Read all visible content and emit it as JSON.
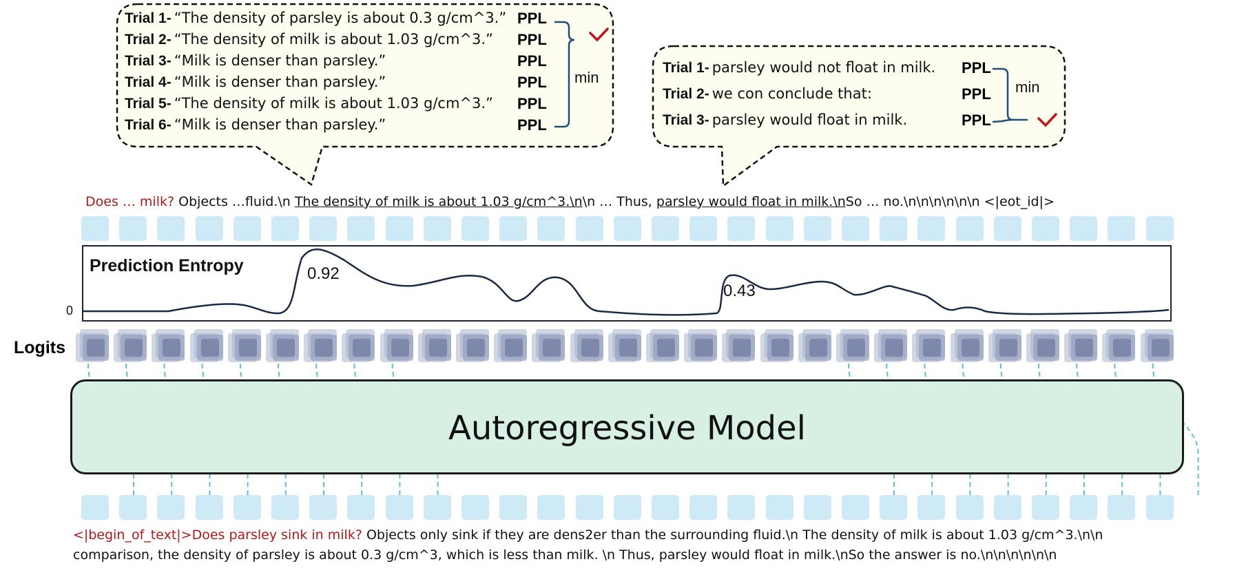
{
  "left_bubble": {
    "trials": [
      {
        "label": "Trial 1-",
        "text": "“The density of parsley is about 0.3 g/cm^3.”",
        "metric": "PPL"
      },
      {
        "label": "Trial 2-",
        "text": "“The density of milk is about 1.03 g/cm^3.”",
        "metric": "PPL"
      },
      {
        "label": "Trial 3-",
        "text": "“Milk is denser than parsley.”",
        "metric": "PPL"
      },
      {
        "label": "Trial 4-",
        "text": "“Milk is denser than parsley.”",
        "metric": "PPL"
      },
      {
        "label": "Trial 5-",
        "text": "“The density of milk is about 1.03 g/cm^3.”",
        "metric": "PPL"
      },
      {
        "label": "Trial 6-",
        "text": "“Milk is denser than parsley.”",
        "metric": "PPL"
      }
    ],
    "min_label": "min",
    "selected_trial": 2
  },
  "right_bubble": {
    "trials": [
      {
        "label": "Trial 1-",
        "text": "parsley would not float in milk.",
        "metric": "PPL"
      },
      {
        "label": "Trial 2-",
        "text": "we con conclude that:",
        "metric": "PPL"
      },
      {
        "label": "Trial 3-",
        "text": "parsley would float in milk.",
        "metric": "PPL"
      }
    ],
    "min_label": "min",
    "selected_trial": 3
  },
  "output_sequence": {
    "prompt": "Does … milk?",
    "seg1": " Objects …fluid.\\n ",
    "underlined1": "The density of milk is about 1.03 g/cm^3.\\n",
    "seg2": "\\n … Thus, ",
    "underlined2": "parsley would float in milk.\\n",
    "seg3": "So … no.\\n\\n\\n\\n\\n\\n <|eot_id|>"
  },
  "entropy": {
    "title": "Prediction Entropy",
    "zero_label": "0",
    "peak1_label": "0.92",
    "peak2_label": "0.43"
  },
  "logits_label": "Logits",
  "model_label": "Autoregressive Model",
  "input_sequence": {
    "prompt": "<|begin_of_text|>Does parsley sink in milk?",
    "line1_rest": " Objects only sink if they are dens2er than the surrounding fluid.\\n The density of milk is about 1.03 g/cm^3.\\n\\n",
    "line2": "comparison, the density of parsley is about 0.3 g/cm^3, which is less than milk. \\n Thus, parsley would float in milk.\\nSo the answer is no.\\n\\n\\n\\n\\n\\n"
  },
  "colors": {
    "token_box": "#cdeaf6",
    "model_fill": "#d8f0e4",
    "prompt_red": "#b4161b",
    "check_red": "#c0141a",
    "bracket_blue": "#1f4e79",
    "dash_blue": "#5bc0e0",
    "bubble_fill": "#fdfdf0"
  }
}
